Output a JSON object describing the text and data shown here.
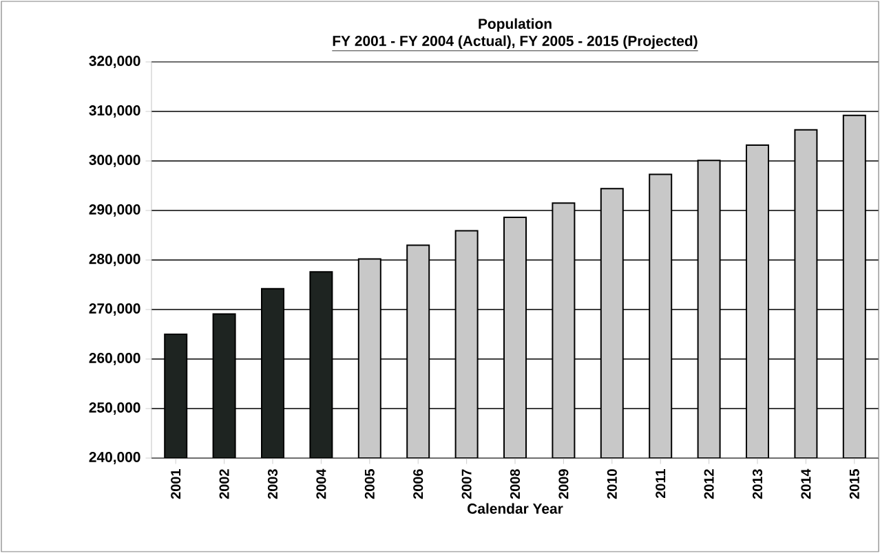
{
  "chart_data": {
    "type": "bar",
    "title": "Population",
    "subtitle": "FY 2001 - FY 2004 (Actual), FY 2005 - 2015 (Projected)",
    "xlabel": "Calendar Year",
    "categories": [
      "2001",
      "2002",
      "2003",
      "2004",
      "2005",
      "2006",
      "2007",
      "2008",
      "2009",
      "2010",
      "2011",
      "2012",
      "2013",
      "2014",
      "2015"
    ],
    "values": [
      265000,
      269100,
      274200,
      277600,
      280200,
      283000,
      285900,
      288600,
      291500,
      294400,
      297300,
      300100,
      303200,
      306300,
      309200
    ],
    "colors": [
      "#1e2421",
      "#1e2421",
      "#1e2421",
      "#1e2421",
      "#c8c8c8",
      "#c8c8c8",
      "#c8c8c8",
      "#c8c8c8",
      "#c8c8c8",
      "#c8c8c8",
      "#c8c8c8",
      "#c8c8c8",
      "#c8c8c8",
      "#c8c8c8",
      "#c8c8c8"
    ],
    "ylim": [
      240000,
      320000
    ],
    "yticks": [
      {
        "value": 240000,
        "label": "240,000"
      },
      {
        "value": 250000,
        "label": "250,000"
      },
      {
        "value": 260000,
        "label": "260,000"
      },
      {
        "value": 270000,
        "label": "270,000"
      },
      {
        "value": 280000,
        "label": "280,000"
      },
      {
        "value": 290000,
        "label": "290,000"
      },
      {
        "value": 300000,
        "label": "300,000"
      },
      {
        "value": 310000,
        "label": "310,000"
      },
      {
        "value": 320000,
        "label": "320,000"
      }
    ],
    "grid": "y"
  }
}
